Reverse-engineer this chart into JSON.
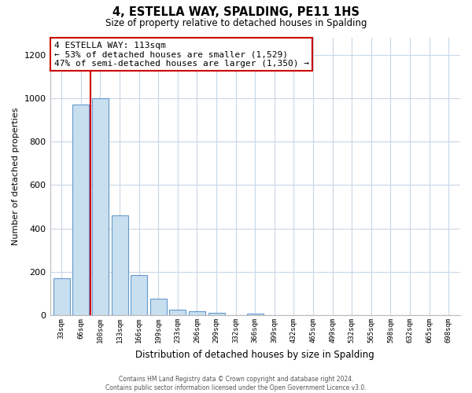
{
  "title": "4, ESTELLA WAY, SPALDING, PE11 1HS",
  "subtitle": "Size of property relative to detached houses in Spalding",
  "xlabel": "Distribution of detached houses by size in Spalding",
  "ylabel": "Number of detached properties",
  "footnote1": "Contains HM Land Registry data © Crown copyright and database right 2024.",
  "footnote2": "Contains public sector information licensed under the Open Government Licence v3.0.",
  "bin_labels": [
    "33sqm",
    "66sqm",
    "100sqm",
    "133sqm",
    "166sqm",
    "199sqm",
    "233sqm",
    "266sqm",
    "299sqm",
    "332sqm",
    "366sqm",
    "399sqm",
    "432sqm",
    "465sqm",
    "499sqm",
    "532sqm",
    "565sqm",
    "598sqm",
    "632sqm",
    "665sqm",
    "698sqm"
  ],
  "bar_values": [
    170,
    970,
    1000,
    460,
    185,
    75,
    25,
    18,
    12,
    0,
    8,
    0,
    0,
    0,
    0,
    0,
    0,
    0,
    0,
    0,
    0
  ],
  "bar_color": "#c8dff0",
  "bar_edge_color": "#6699cc",
  "vline_x_index": 1.5,
  "vline_color": "#cc0000",
  "annotation_text": "4 ESTELLA WAY: 113sqm\n← 53% of detached houses are smaller (1,529)\n47% of semi-detached houses are larger (1,350) →",
  "annotation_box_color": "#ffffff",
  "annotation_box_edgecolor": "#cc0000",
  "ylim": [
    0,
    1280
  ],
  "yticks": [
    0,
    200,
    400,
    600,
    800,
    1000,
    1200
  ],
  "figsize": [
    6.0,
    5.0
  ],
  "dpi": 100,
  "bg_color": "#ffffff",
  "grid_color": "#c8d8e8"
}
